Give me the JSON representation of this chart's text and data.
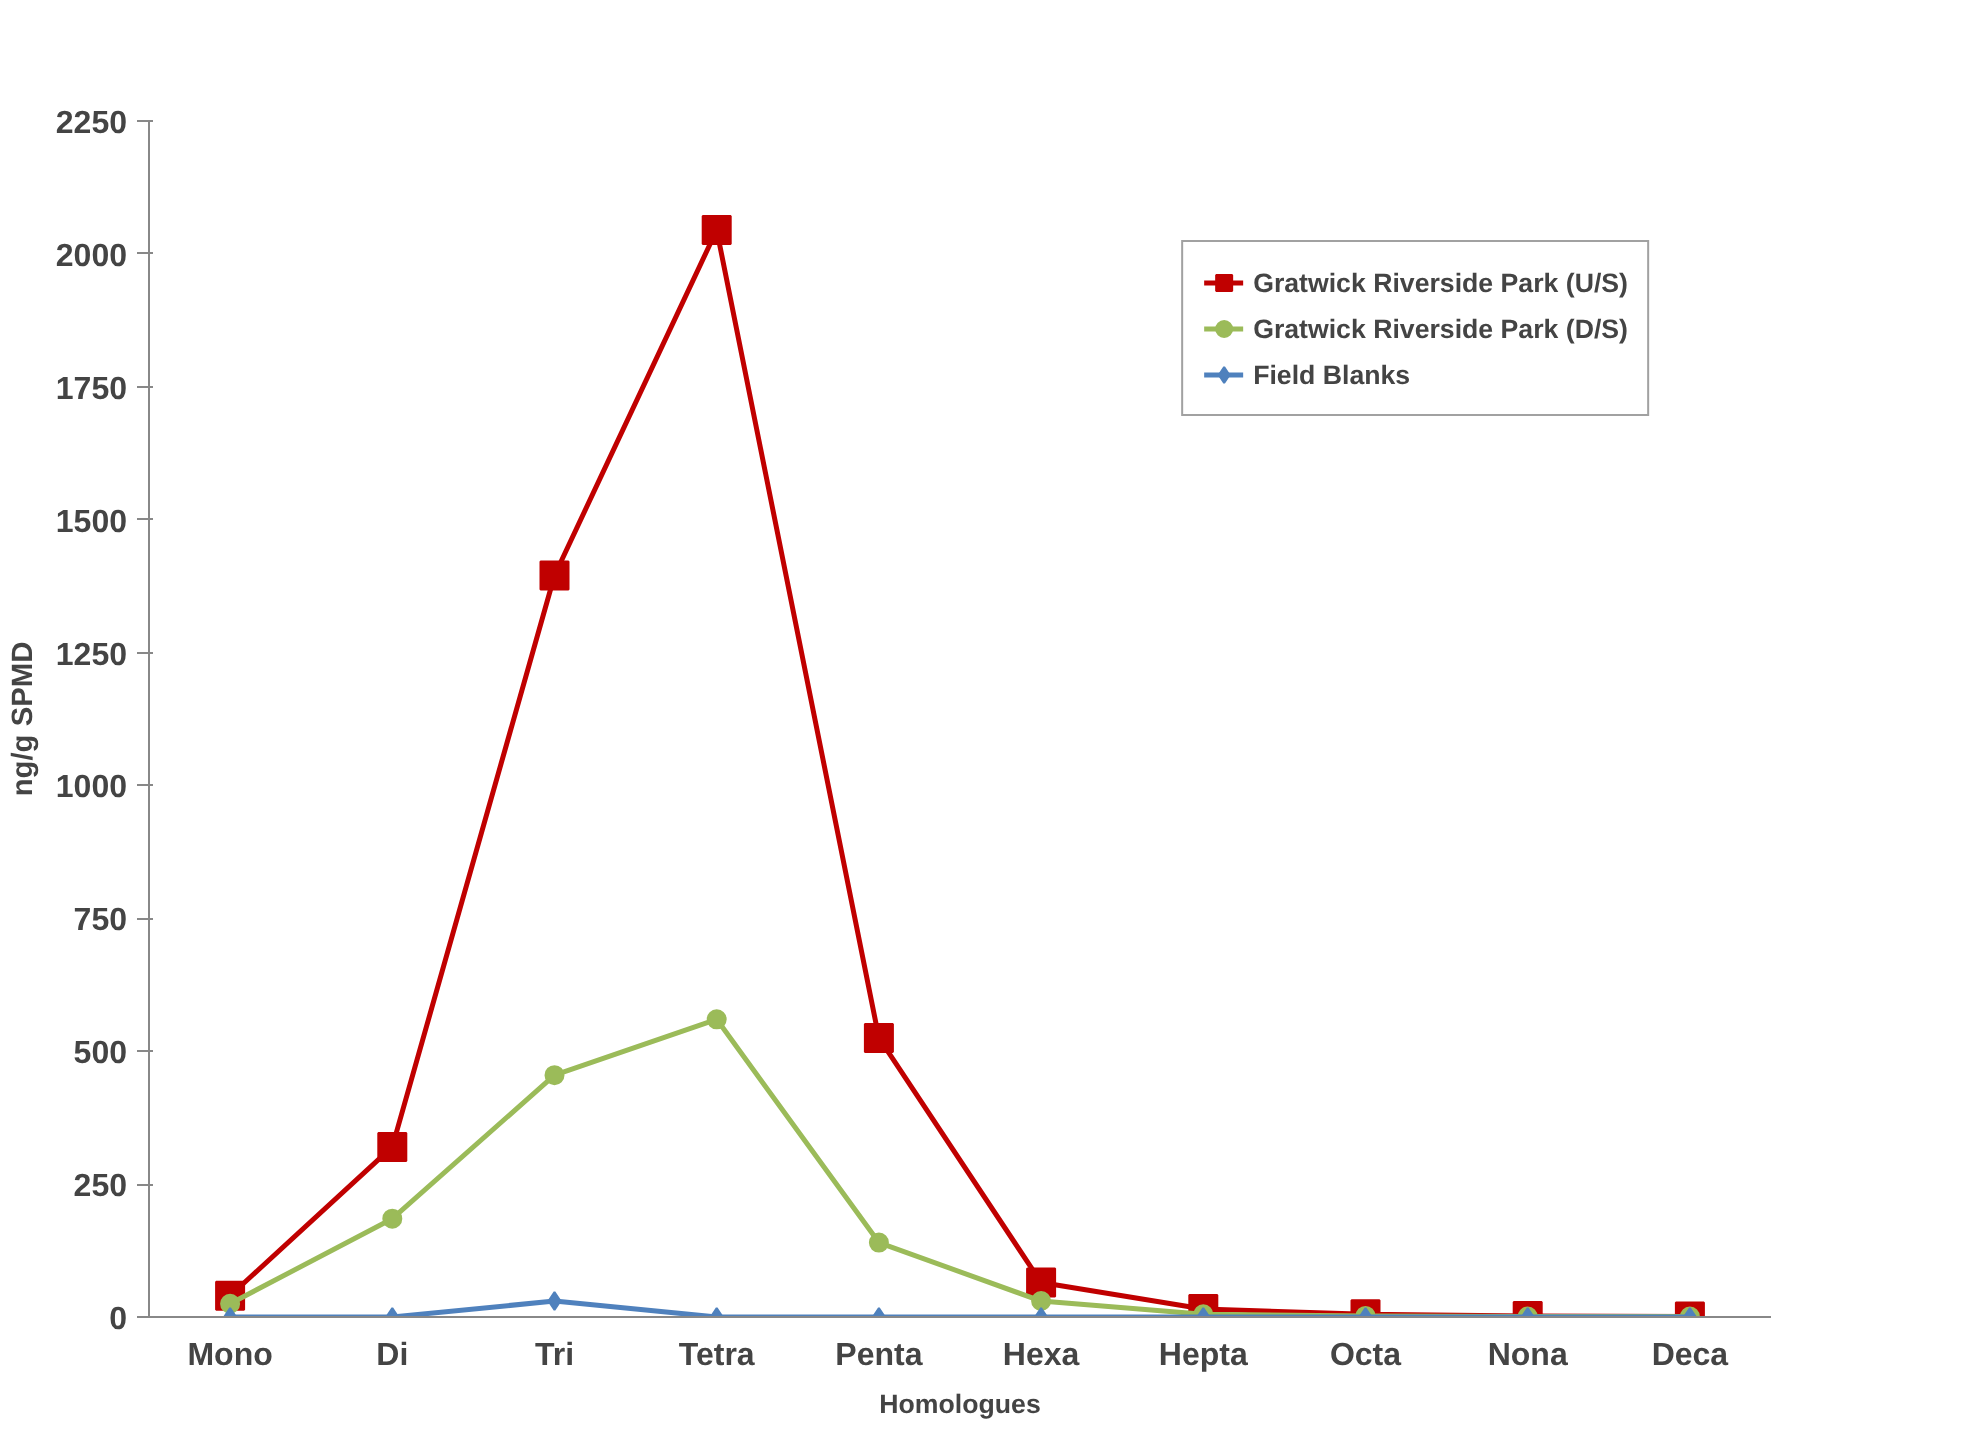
{
  "chart_data": {
    "type": "line",
    "xlabel": "Homologues",
    "ylabel": "ng/g SPMD",
    "categories": [
      "Mono",
      "Di",
      "Tri",
      "Tetra",
      "Penta",
      "Hexa",
      "Hepta",
      "Octa",
      "Nona",
      "Deca"
    ],
    "series": [
      {
        "name": "Gratwick Riverside Park (U/S)",
        "color": "#c00000",
        "marker": "square",
        "values": [
          40,
          320,
          1395,
          2045,
          525,
          65,
          15,
          5,
          2,
          1
        ]
      },
      {
        "name": "Gratwick Riverside Park (D/S)",
        "color": "#9bbb59",
        "marker": "circle",
        "values": [
          25,
          185,
          455,
          560,
          140,
          30,
          5,
          2,
          1,
          1
        ]
      },
      {
        "name": "Field Blanks",
        "color": "#4f81bd",
        "marker": "diamond",
        "values": [
          0,
          0,
          30,
          0,
          0,
          0,
          0,
          0,
          0,
          0
        ]
      }
    ],
    "ylim": [
      0,
      2250
    ],
    "yticks": [
      0,
      250,
      500,
      750,
      1000,
      1250,
      1500,
      1750,
      2000,
      2250
    ],
    "grid": false,
    "legend": "top right",
    "line_style": "solid"
  }
}
